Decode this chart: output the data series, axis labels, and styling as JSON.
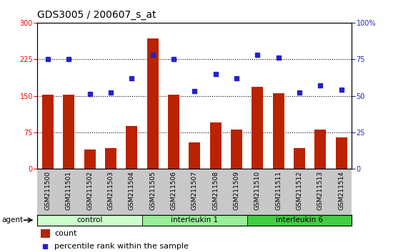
{
  "title": "GDS3005 / 200607_s_at",
  "samples": [
    "GSM211500",
    "GSM211501",
    "GSM211502",
    "GSM211503",
    "GSM211504",
    "GSM211505",
    "GSM211506",
    "GSM211507",
    "GSM211508",
    "GSM211509",
    "GSM211510",
    "GSM211511",
    "GSM211512",
    "GSM211513",
    "GSM211514"
  ],
  "bar_heights": [
    152,
    152,
    40,
    42,
    88,
    268,
    152,
    55,
    95,
    80,
    168,
    155,
    42,
    80,
    65
  ],
  "dot_values": [
    75,
    75,
    51,
    52,
    62,
    78,
    75,
    53,
    65,
    62,
    78,
    76,
    52,
    57,
    54
  ],
  "bar_color": "#bb2200",
  "dot_color": "#2222cc",
  "left_ylim": [
    0,
    300
  ],
  "right_ylim": [
    0,
    100
  ],
  "left_yticks": [
    0,
    75,
    150,
    225,
    300
  ],
  "right_yticks": [
    0,
    25,
    50,
    75,
    100
  ],
  "right_yticklabels": [
    "0",
    "25",
    "50",
    "75",
    "100%"
  ],
  "hlines": [
    75,
    150,
    225
  ],
  "groups": [
    {
      "label": "control",
      "start": 0,
      "end": 4,
      "color": "#ccffcc"
    },
    {
      "label": "interleukin 1",
      "start": 5,
      "end": 9,
      "color": "#99ee99"
    },
    {
      "label": "interleukin 6",
      "start": 10,
      "end": 14,
      "color": "#44cc44"
    }
  ],
  "agent_label": "agent",
  "legend_items": [
    {
      "label": "count",
      "color": "#bb2200"
    },
    {
      "label": "percentile rank within the sample",
      "color": "#2222cc"
    }
  ],
  "title_fontsize": 10,
  "tick_fontsize": 7,
  "label_fontsize": 6.5,
  "background_color": "#ffffff",
  "plot_bg": "#ffffff"
}
